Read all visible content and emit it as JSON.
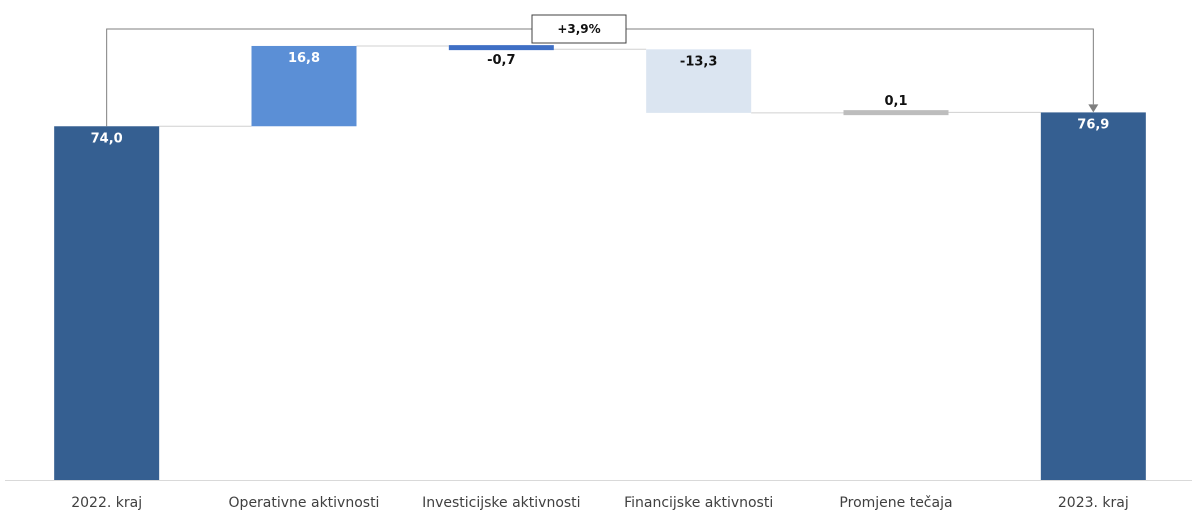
{
  "chart_data": {
    "type": "bar",
    "subtype": "waterfall",
    "categories": [
      "2022. kraj",
      "Operativne aktivnosti",
      "Investicijske aktivnosti",
      "Financijske aktivnosti",
      "Promjene tečaja",
      "2023. kraj"
    ],
    "values": [
      74.0,
      16.8,
      -0.7,
      -13.3,
      0.1,
      76.9
    ],
    "value_labels": [
      "74,0",
      "16,8",
      "-0,7",
      "-13,3",
      "0,1",
      "76,9"
    ],
    "kinds": [
      "total",
      "delta",
      "delta",
      "delta",
      "delta",
      "total"
    ],
    "colors": [
      "#355f91",
      "#5b8fd6",
      "#3f6fc5",
      "#dbe5f1",
      "#bdbdbd",
      "#355f91"
    ],
    "change_annotation": "+3,9%",
    "ylim": [
      0,
      91
    ],
    "title": "",
    "xlabel": "",
    "ylabel": "",
    "grid": false,
    "legend": "none"
  }
}
